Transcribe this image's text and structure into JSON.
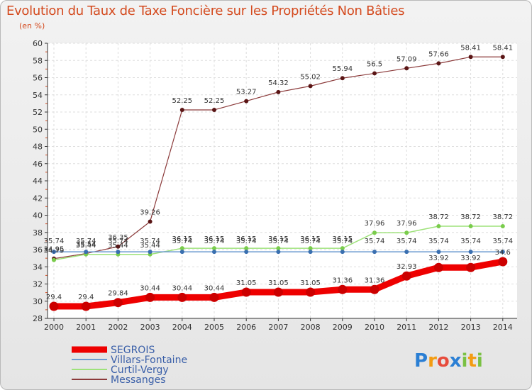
{
  "chart_data": {
    "type": "line",
    "title": "Evolution du Taux de Taxe Foncière sur les Propriétés Non Bâties",
    "unit_label": "(en %)",
    "xlabel": "",
    "ylabel": "",
    "ylim": [
      28,
      60
    ],
    "y_ticks": [
      "28",
      "30",
      "32",
      "34",
      "36",
      "38",
      "40",
      "42",
      "44",
      "46",
      "48",
      "50",
      "52",
      "54",
      "56",
      "58",
      "60"
    ],
    "categories": [
      "2000",
      "2001",
      "2002",
      "2003",
      "2004",
      "2005",
      "2006",
      "2007",
      "2008",
      "2009",
      "2010",
      "2011",
      "2012",
      "2013",
      "2014"
    ],
    "series": [
      {
        "name": "SEGROIS",
        "color": "#ee0000",
        "marker": "#cc0000",
        "values": [
          29.4,
          29.4,
          29.84,
          30.44,
          30.44,
          30.44,
          31.05,
          31.05,
          31.05,
          31.36,
          31.36,
          32.93,
          33.92,
          33.92,
          34.6
        ],
        "labels": [
          "29.4",
          "29.4",
          "29.84",
          "30.44",
          "30.44",
          "30.44",
          "31.05",
          "31.05",
          "31.05",
          "31.36",
          "31.36",
          "32.93",
          "33.92",
          "33.92",
          "34.6"
        ]
      },
      {
        "name": "Villars-Fontaine",
        "color": "#6d9bd1",
        "marker": "#3a6fb0",
        "values": [
          35.74,
          35.74,
          35.74,
          35.74,
          35.74,
          35.74,
          35.74,
          35.74,
          35.74,
          35.74,
          35.74,
          35.74,
          35.74,
          35.74,
          35.74
        ],
        "labels": [
          "35.74",
          "35.74",
          "35.74",
          "35.74",
          "35.74",
          "35.74",
          "35.74",
          "35.74",
          "35.74",
          "35.74",
          "35.74",
          "35.74",
          "35.74",
          "35.74",
          "35.74"
        ]
      },
      {
        "name": "Curtil-Vergy",
        "color": "#9ee27a",
        "marker": "#7acc4c",
        "values": [
          34.79,
          35.44,
          35.44,
          35.44,
          36.15,
          36.15,
          36.15,
          36.15,
          36.15,
          36.15,
          37.96,
          37.96,
          38.72,
          38.72,
          38.72
        ],
        "labels": [
          "34.79",
          "35.44",
          "35.44",
          "35.44",
          "36.15",
          "36.15",
          "36.15",
          "36.15",
          "36.15",
          "36.15",
          "37.96",
          "37.96",
          "38.72",
          "38.72",
          "38.72"
        ]
      },
      {
        "name": "Messanges",
        "color": "#8b3a3a",
        "marker": "#5a1515",
        "values": [
          34.95,
          35.54,
          36.35,
          39.26,
          52.25,
          52.25,
          53.27,
          54.32,
          55.02,
          55.94,
          56.5,
          57.09,
          57.66,
          58.41,
          58.41
        ],
        "labels": [
          "34.95",
          "35.54",
          "36.35",
          "39.26",
          "52.25",
          "52.25",
          "53.27",
          "54.32",
          "55.02",
          "55.94",
          "56.5",
          "57.09",
          "57.66",
          "58.41",
          "58.41"
        ]
      }
    ],
    "legend_position": "bottom-left"
  },
  "logo": {
    "text": "Proxiti",
    "letters": [
      "P",
      "r",
      "o",
      "x",
      "i",
      "t",
      "i"
    ],
    "colors": [
      "#2b7fd4",
      "#f39c12",
      "#e74c3c",
      "#2b7fd4",
      "#7ac143",
      "#f39c12",
      "#7ac143"
    ]
  }
}
